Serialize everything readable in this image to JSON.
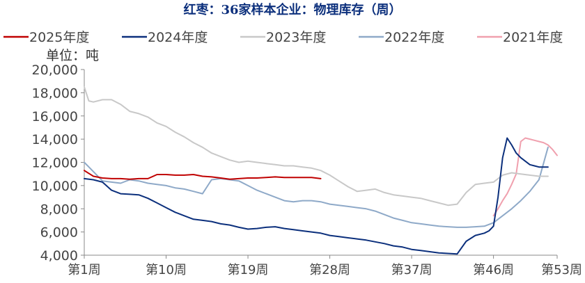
{
  "chart_data": {
    "type": "line",
    "title": "红枣：36家样本企业：物理库存（周）",
    "unit_label": "单位：吨",
    "ylim": [
      4000,
      20000
    ],
    "y_ticks": [
      "4,000",
      "6,000",
      "8,000",
      "10,000",
      "12,000",
      "14,000",
      "16,000",
      "18,000",
      "20,000"
    ],
    "y_tick_values": [
      4000,
      6000,
      8000,
      10000,
      12000,
      14000,
      16000,
      18000,
      20000
    ],
    "xlim": [
      1,
      53
    ],
    "x_ticks": [
      "第1周",
      "第10周",
      "第19周",
      "第28周",
      "第37周",
      "第46周",
      "第53周"
    ],
    "x_tick_values": [
      1,
      10,
      19,
      28,
      37,
      46,
      53
    ],
    "grid": false,
    "legend_position": "top",
    "series": [
      {
        "name": "2025年度",
        "color": "#c00000",
        "x": [
          1,
          2,
          3,
          4,
          5,
          6,
          7,
          8,
          9,
          10,
          11,
          12,
          13,
          14,
          15,
          16,
          17,
          18,
          19,
          20,
          21,
          22,
          23,
          24,
          25,
          26,
          27
        ],
        "values": [
          11300,
          10800,
          10650,
          10600,
          10600,
          10550,
          10600,
          10600,
          10950,
          10950,
          10900,
          10900,
          10950,
          10800,
          10750,
          10650,
          10550,
          10600,
          10650,
          10650,
          10700,
          10750,
          10700,
          10700,
          10700,
          10700,
          10600
        ]
      },
      {
        "name": "2024年度",
        "color": "#0b2f7c",
        "x": [
          1,
          2,
          3,
          4,
          5,
          6,
          7,
          8,
          9,
          10,
          11,
          12,
          13,
          14,
          15,
          16,
          17,
          18,
          19,
          20,
          21,
          22,
          23,
          24,
          25,
          26,
          27,
          28,
          29,
          30,
          31,
          32,
          33,
          34,
          35,
          36,
          37,
          38,
          39,
          40,
          41,
          42,
          43,
          44,
          45,
          45.5,
          46,
          46.5,
          47,
          47.5,
          48,
          48.5,
          49,
          49.5,
          50,
          50.5,
          51,
          51.5,
          52
        ],
        "values": [
          10600,
          10500,
          10300,
          9600,
          9300,
          9250,
          9200,
          8900,
          8500,
          8100,
          7700,
          7400,
          7100,
          7000,
          6900,
          6700,
          6600,
          6400,
          6250,
          6300,
          6400,
          6450,
          6300,
          6200,
          6100,
          6000,
          5900,
          5700,
          5600,
          5500,
          5400,
          5300,
          5150,
          5000,
          4800,
          4700,
          4500,
          4400,
          4300,
          4200,
          4150,
          4100,
          5200,
          5700,
          5900,
          6100,
          6500,
          9000,
          12400,
          14100,
          13500,
          12800,
          12400,
          12100,
          11800,
          11700,
          11600,
          11600,
          11600
        ]
      },
      {
        "name": "2023年度",
        "color": "#c8c8c8",
        "x": [
          1,
          1.5,
          2,
          3,
          4,
          5,
          6,
          7,
          8,
          9,
          10,
          11,
          12,
          13,
          14,
          15,
          16,
          17,
          18,
          19,
          20,
          21,
          22,
          23,
          24,
          25,
          26,
          27,
          28,
          29,
          30,
          31,
          32,
          33,
          34,
          35,
          36,
          37,
          38,
          39,
          40,
          41,
          42,
          43,
          44,
          45,
          46,
          47,
          48,
          49,
          50,
          51,
          52
        ],
        "values": [
          18500,
          17300,
          17200,
          17400,
          17400,
          17000,
          16400,
          16200,
          15900,
          15400,
          15100,
          14600,
          14200,
          13700,
          13300,
          12800,
          12500,
          12200,
          12000,
          12100,
          12000,
          11900,
          11800,
          11700,
          11700,
          11600,
          11500,
          11300,
          10900,
          10400,
          9900,
          9500,
          9600,
          9700,
          9400,
          9200,
          9100,
          9000,
          8900,
          8700,
          8500,
          8300,
          8400,
          9400,
          10100,
          10200,
          10300,
          10900,
          11100,
          11000,
          10900,
          10800,
          10800
        ]
      },
      {
        "name": "2022年度",
        "color": "#8ea9c8",
        "x": [
          1,
          2,
          3,
          4,
          5,
          6,
          7,
          8,
          9,
          10,
          11,
          12,
          13,
          14,
          15,
          16,
          17,
          18,
          19,
          20,
          21,
          22,
          23,
          24,
          25,
          26,
          27,
          28,
          29,
          30,
          31,
          32,
          33,
          34,
          35,
          36,
          37,
          38,
          39,
          40,
          41,
          42,
          43,
          44,
          45,
          46,
          47,
          48,
          49,
          50,
          51,
          52
        ],
        "values": [
          12000,
          11200,
          10400,
          10300,
          10200,
          10500,
          10400,
          10200,
          10100,
          10000,
          9800,
          9700,
          9500,
          9300,
          10500,
          10600,
          10500,
          10400,
          10000,
          9600,
          9300,
          9000,
          8700,
          8600,
          8700,
          8700,
          8600,
          8400,
          8300,
          8200,
          8100,
          8000,
          7800,
          7500,
          7200,
          7000,
          6800,
          6700,
          6600,
          6500,
          6450,
          6400,
          6400,
          6450,
          6500,
          6800,
          7400,
          8000,
          8700,
          9500,
          10500,
          13300
        ]
      },
      {
        "name": "2021年度",
        "color": "#f0a0ae",
        "x": [
          46,
          46.5,
          47,
          47.5,
          48,
          48.5,
          49,
          49.5,
          50,
          50.5,
          51,
          51.5,
          52,
          52.5,
          53
        ],
        "values": [
          7400,
          8000,
          8700,
          9300,
          10100,
          11000,
          13800,
          14100,
          14000,
          13900,
          13800,
          13700,
          13500,
          13100,
          12600
        ]
      }
    ]
  }
}
